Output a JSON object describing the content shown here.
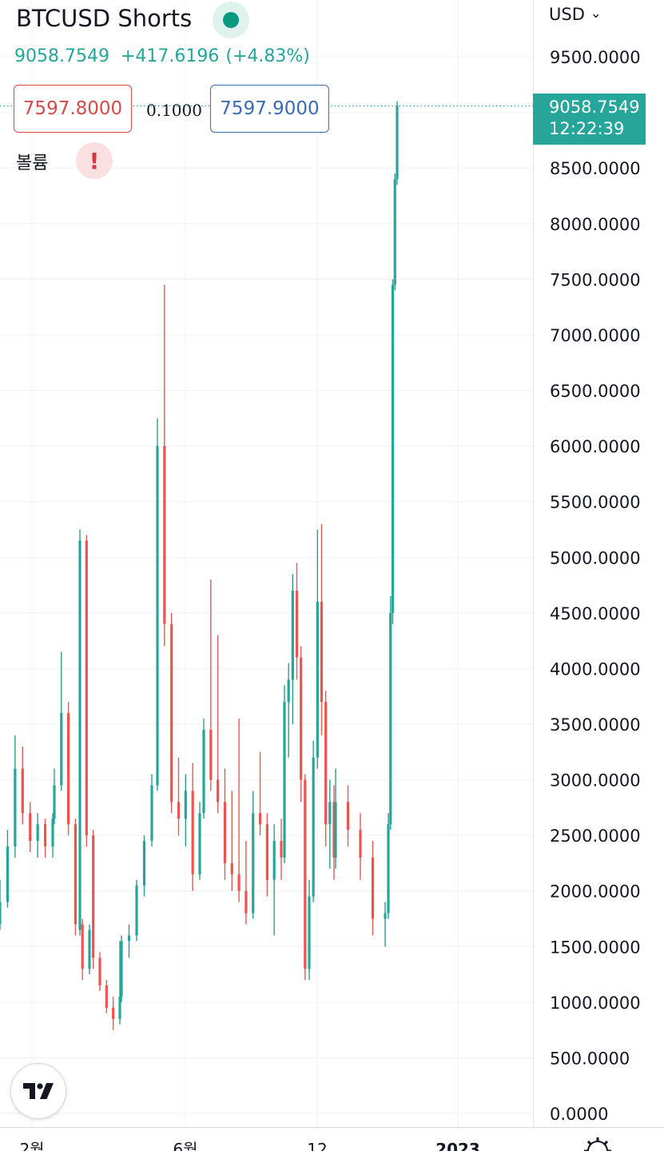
{
  "header": {
    "symbol": "BTCUSD Shorts",
    "last_price": "9058.7549",
    "change": "+417.6196",
    "change_pct": "(+4.83%)",
    "bid": "7597.8000",
    "spread": "0.1000",
    "ask": "7597.9000",
    "volume_label": "볼륨",
    "alert_glyph": "!",
    "status_icon": "market-open-dot-icon"
  },
  "price_axis": {
    "currency": "USD",
    "currency_glyph": "⌄",
    "last_price_label": "9058.7549",
    "countdown": "12:22:39"
  },
  "colors": {
    "up": "#26a69a",
    "down": "#ef5350",
    "down_wick": "#e05b57",
    "up_wick": "#2d9c8f",
    "grid": "#f0f3fa",
    "bid": "#d84a4a",
    "ask": "#3a6bb5"
  },
  "chart_data": {
    "type": "candlestick",
    "title": "BTCUSD Shorts",
    "y_ticks": [
      "0.0000",
      "500.0000",
      "1000.0000",
      "1500.0000",
      "2000.0000",
      "2500.0000",
      "3000.0000",
      "3500.0000",
      "4000.0000",
      "4500.0000",
      "5000.0000",
      "5500.0000",
      "6000.0000",
      "6500.0000",
      "7000.0000",
      "7500.0000",
      "8000.0000",
      "8500.0000",
      "9000.0000",
      "9500.0000"
    ],
    "x_ticks": [
      "2월",
      "6월",
      "12",
      "2023"
    ],
    "ylim": [
      0,
      9700
    ],
    "last_price": 9058.7549,
    "grid": true,
    "ohlc_series": [
      {
        "segment": "start",
        "values": [
          [
            1700,
            2100,
            1650,
            1900
          ],
          [
            1900,
            2550,
            1850,
            2400
          ],
          [
            2400,
            3400,
            2300,
            3100
          ],
          [
            3100,
            3300,
            2600,
            2700
          ],
          [
            2700,
            2800,
            2350,
            2450
          ],
          [
            2450,
            2700,
            2300,
            2600
          ],
          [
            2600,
            2650,
            2300,
            2400
          ],
          [
            2400,
            2700,
            2300,
            2650
          ]
        ]
      },
      {
        "segment": "feb",
        "values": [
          [
            2650,
            3100,
            2600,
            2950
          ],
          [
            2950,
            4150,
            2900,
            3600
          ],
          [
            3600,
            3700,
            2500,
            2600
          ],
          [
            2600,
            2650,
            1600,
            1700
          ],
          [
            1700,
            1750,
            1200,
            1300
          ],
          [
            1300,
            1700,
            1250,
            1650
          ]
        ]
      },
      {
        "segment": "spike1",
        "values": [
          [
            1650,
            5250,
            1600,
            5150
          ],
          [
            5150,
            5200,
            2400,
            2500
          ],
          [
            2500,
            2550,
            1300,
            1400
          ],
          [
            1400,
            1450,
            1100,
            1150
          ],
          [
            1150,
            1200,
            900,
            950
          ],
          [
            950,
            1050,
            750,
            850
          ],
          [
            850,
            1550,
            800,
            1050
          ]
        ]
      },
      {
        "segment": "recovery",
        "values": [
          [
            1050,
            1600,
            1000,
            1550
          ],
          [
            1550,
            1700,
            1400,
            1600
          ],
          [
            1600,
            2100,
            1550,
            2050
          ],
          [
            2050,
            2500,
            1950,
            2450
          ],
          [
            2450,
            3050,
            2400,
            2950
          ]
        ]
      },
      {
        "segment": "spike2",
        "values": [
          [
            2950,
            6250,
            2900,
            6000
          ],
          [
            6000,
            7450,
            4200,
            4400
          ],
          [
            4400,
            4500,
            2700,
            2800
          ],
          [
            2800,
            3200,
            2500,
            2650
          ],
          [
            2650,
            3050,
            2400,
            2900
          ],
          [
            2900,
            3150,
            2000,
            2150
          ],
          [
            2150,
            2800,
            2100,
            2700
          ]
        ]
      },
      {
        "segment": "midyear",
        "values": [
          [
            2700,
            3550,
            2650,
            3450
          ],
          [
            3450,
            4800,
            2900,
            3000
          ],
          [
            3000,
            4300,
            2700,
            2800
          ],
          [
            2800,
            3100,
            2100,
            2250
          ],
          [
            2250,
            2900,
            2000,
            2150
          ],
          [
            2150,
            3550,
            1900,
            2000
          ],
          [
            2000,
            2450,
            1700,
            1800
          ],
          [
            1800,
            2900,
            1750,
            2700
          ],
          [
            2700,
            3250,
            2500,
            2600
          ],
          [
            2600,
            2700,
            1950,
            2100
          ],
          [
            2100,
            2600,
            1600,
            2450
          ],
          [
            2450,
            2650,
            2100,
            2300
          ]
        ]
      },
      {
        "segment": "autumn",
        "values": [
          [
            2300,
            3850,
            2250,
            3700
          ],
          [
            3700,
            4050,
            3200,
            3900
          ],
          [
            3900,
            4850,
            3500,
            4700
          ],
          [
            4700,
            4950,
            3900,
            4100
          ],
          [
            4100,
            4200,
            2800,
            3000
          ],
          [
            3000,
            3050,
            1200,
            1300
          ],
          [
            1300,
            2100,
            1200,
            1950
          ],
          [
            1950,
            3350,
            1900,
            3200
          ],
          [
            3200,
            5250,
            3100,
            4600
          ],
          [
            4600,
            5300,
            3400,
            3700
          ],
          [
            3700,
            3800,
            2400,
            2600
          ],
          [
            2600,
            3000,
            2200,
            2800
          ],
          [
            2800,
            2950,
            2100,
            2300
          ]
        ]
      },
      {
        "segment": "winter",
        "values": [
          [
            2300,
            3100,
            2200,
            2800
          ],
          [
            2800,
            2950,
            2400,
            2550
          ],
          [
            2550,
            2700,
            2100,
            2300
          ],
          [
            2300,
            2450,
            1600,
            1750
          ],
          [
            1750,
            1900,
            1500,
            1800
          ]
        ]
      },
      {
        "segment": "surge",
        "values": [
          [
            1800,
            2700,
            1750,
            2600
          ],
          [
            2600,
            4650,
            2550,
            4500
          ],
          [
            4500,
            7500,
            4400,
            7450
          ],
          [
            7450,
            8450,
            7400,
            8400
          ],
          [
            8400,
            9100,
            8350,
            9058.7549
          ]
        ]
      }
    ]
  }
}
